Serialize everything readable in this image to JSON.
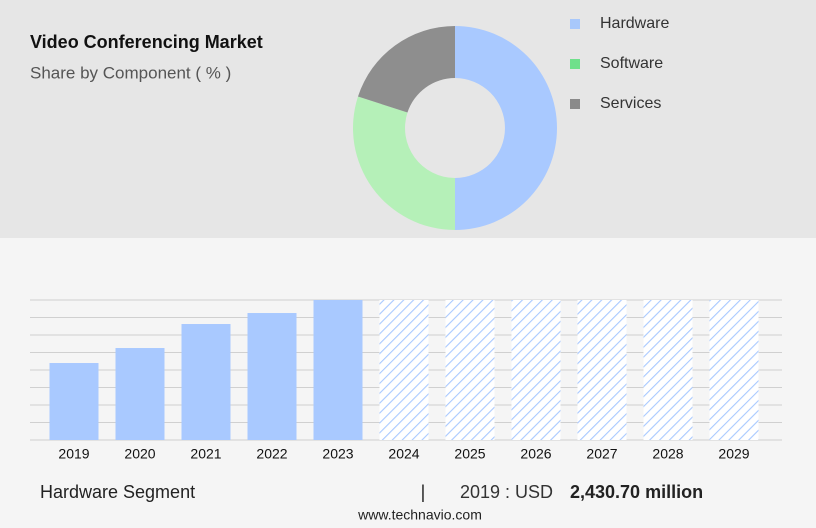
{
  "chart_data": [
    {
      "type": "pie",
      "title": "Video Conferencing Market",
      "subtitle": "Share by Component ( % )",
      "categories": [
        "Hardware",
        "Software",
        "Services"
      ],
      "values": [
        50,
        30,
        20
      ],
      "colors": [
        "#a9c9ff",
        "#b5f0b8",
        "#8e8e8e"
      ],
      "legend_colors": [
        "#a8c8fb",
        "#6fe08b",
        "#8a8a8a"
      ],
      "hole": 0.49
    },
    {
      "type": "bar",
      "categories": [
        "2019",
        "2020",
        "2021",
        "2022",
        "2023",
        "2024",
        "2025",
        "2026",
        "2027",
        "2028",
        "2029"
      ],
      "values": [
        2430.7,
        2904,
        3662,
        4009,
        4420,
        null,
        null,
        null,
        null,
        null,
        null
      ],
      "value_labels": [
        "2,430.70 million",
        null,
        null,
        null,
        null,
        null,
        null,
        null,
        null,
        null,
        null
      ],
      "color": "#a9c9ff",
      "ylim": [
        0,
        4420
      ],
      "grid": true,
      "segment": "Hardware Segment",
      "divider": "|",
      "highlight": "2019 : USD",
      "source": "www.technavio.com"
    }
  ]
}
